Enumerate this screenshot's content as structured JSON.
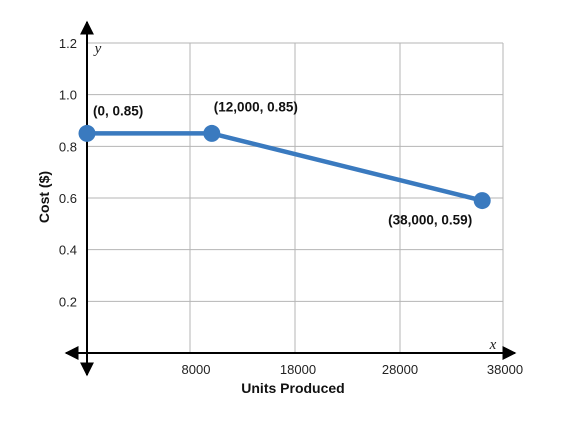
{
  "chart_data": {
    "type": "line",
    "xlabel": "Units Produced",
    "ylabel": "Cost ($)",
    "x_var": "x",
    "y_var": "y",
    "xlim": [
      0,
      40000
    ],
    "ylim": [
      0,
      1.2
    ],
    "x_ticks": [
      8000,
      18000,
      28000,
      38000
    ],
    "x_tick_labels": [
      "8000",
      "18000",
      "28000",
      "38000"
    ],
    "y_ticks": [
      0.2,
      0.4,
      0.6,
      0.8,
      1.0,
      1.2
    ],
    "y_tick_labels": [
      "0.2",
      "0.4",
      "0.6",
      "0.8",
      "1.0",
      "1.2"
    ],
    "grid": true,
    "series": [
      {
        "color": "#3a7abf",
        "points": [
          {
            "x": 0,
            "y": 0.85,
            "label": "(0, 0.85)"
          },
          {
            "x": 12000,
            "y": 0.85,
            "label": "(12,000, 0.85)"
          },
          {
            "x": 38000,
            "y": 0.59,
            "label": "(38,000, 0.59)"
          }
        ]
      }
    ]
  }
}
